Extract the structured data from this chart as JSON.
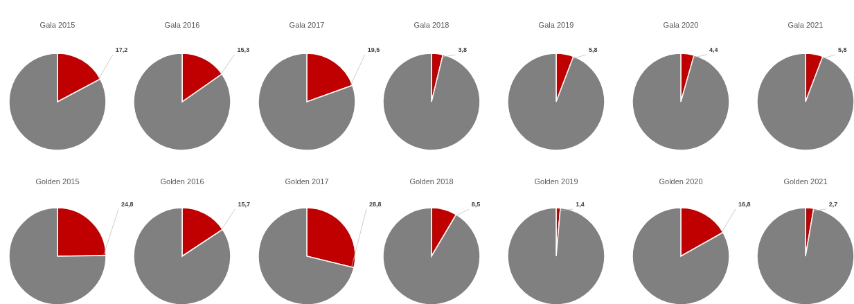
{
  "chart_data": [
    {
      "type": "pie",
      "title": "Gala 2015",
      "categories": [
        null,
        null
      ],
      "values": [
        17.2,
        82.8
      ],
      "colors": [
        "#c00000",
        "#808080"
      ],
      "value_labels": [
        "17,2",
        null
      ]
    },
    {
      "type": "pie",
      "title": "Gala 2016",
      "categories": [
        null,
        null
      ],
      "values": [
        15.3,
        84.7
      ],
      "colors": [
        "#c00000",
        "#808080"
      ],
      "value_labels": [
        "15,3",
        null
      ]
    },
    {
      "type": "pie",
      "title": "Gala 2017",
      "categories": [
        null,
        null
      ],
      "values": [
        19.5,
        80.5
      ],
      "colors": [
        "#c00000",
        "#808080"
      ],
      "value_labels": [
        "19,5",
        null
      ]
    },
    {
      "type": "pie",
      "title": "Gala 2018",
      "categories": [
        null,
        null
      ],
      "values": [
        3.8,
        96.2
      ],
      "colors": [
        "#c00000",
        "#808080"
      ],
      "value_labels": [
        "3,8",
        null
      ]
    },
    {
      "type": "pie",
      "title": "Gala 2019",
      "categories": [
        null,
        null
      ],
      "values": [
        5.8,
        94.2
      ],
      "colors": [
        "#c00000",
        "#808080"
      ],
      "value_labels": [
        "5,8",
        null
      ]
    },
    {
      "type": "pie",
      "title": "Gala 2020",
      "categories": [
        null,
        null
      ],
      "values": [
        4.4,
        95.6
      ],
      "colors": [
        "#c00000",
        "#808080"
      ],
      "value_labels": [
        "4,4",
        null
      ]
    },
    {
      "type": "pie",
      "title": "Gala 2021",
      "categories": [
        null,
        null
      ],
      "values": [
        5.8,
        94.2
      ],
      "colors": [
        "#c00000",
        "#808080"
      ],
      "value_labels": [
        "5,8",
        null
      ]
    },
    {
      "type": "pie",
      "title": "Golden 2015",
      "categories": [
        null,
        null
      ],
      "values": [
        24.8,
        75.2
      ],
      "colors": [
        "#c00000",
        "#808080"
      ],
      "value_labels": [
        "24,8",
        null
      ]
    },
    {
      "type": "pie",
      "title": "Golden 2016",
      "categories": [
        null,
        null
      ],
      "values": [
        15.7,
        84.3
      ],
      "colors": [
        "#c00000",
        "#808080"
      ],
      "value_labels": [
        "15,7",
        null
      ]
    },
    {
      "type": "pie",
      "title": "Golden 2017",
      "categories": [
        null,
        null
      ],
      "values": [
        28.8,
        71.2
      ],
      "colors": [
        "#c00000",
        "#808080"
      ],
      "value_labels": [
        "28,8",
        null
      ]
    },
    {
      "type": "pie",
      "title": "Golden 2018",
      "categories": [
        null,
        null
      ],
      "values": [
        8.5,
        91.5
      ],
      "colors": [
        "#c00000",
        "#808080"
      ],
      "value_labels": [
        "8,5",
        null
      ]
    },
    {
      "type": "pie",
      "title": "Golden 2019",
      "categories": [
        null,
        null
      ],
      "values": [
        1.4,
        98.6
      ],
      "colors": [
        "#c00000",
        "#808080"
      ],
      "value_labels": [
        "1,4",
        null
      ]
    },
    {
      "type": "pie",
      "title": "Golden 2020",
      "categories": [
        null,
        null
      ],
      "values": [
        16.8,
        83.2
      ],
      "colors": [
        "#c00000",
        "#808080"
      ],
      "value_labels": [
        "16,8",
        null
      ]
    },
    {
      "type": "pie",
      "title": "Golden 2021",
      "categories": [
        null,
        null
      ],
      "values": [
        2.7,
        97.3
      ],
      "colors": [
        "#c00000",
        "#808080"
      ],
      "value_labels": [
        "2,7",
        null
      ]
    }
  ]
}
